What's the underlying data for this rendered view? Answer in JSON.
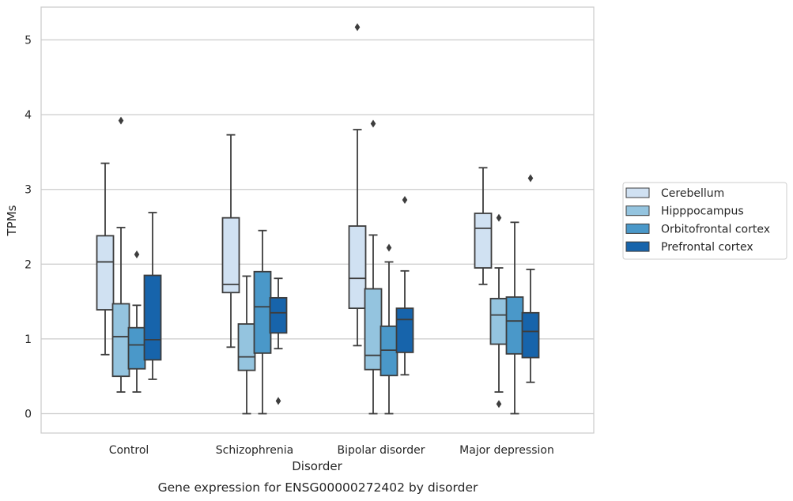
{
  "chart_data": {
    "type": "box",
    "caption": "Gene expression for ENSG00000272402 by disorder",
    "xlabel": "Disorder",
    "ylabel": "TPMs",
    "ylim": [
      -0.25,
      5.45
    ],
    "yticks": [
      0,
      1,
      2,
      3,
      4,
      5
    ],
    "grid": "horizontal",
    "legend_position": "center-right",
    "categories": [
      "Control",
      "Schizophrenia",
      "Bipolar disorder",
      "Major depression"
    ],
    "series": [
      {
        "name": "Cerebellum",
        "color": "#d0e1f2",
        "boxes": [
          {
            "whislo": 0.79,
            "q1": 1.39,
            "med": 2.03,
            "q3": 2.38,
            "whishi": 3.35,
            "fliers": []
          },
          {
            "whislo": 0.89,
            "q1": 1.62,
            "med": 1.73,
            "q3": 2.62,
            "whishi": 3.73,
            "fliers": []
          },
          {
            "whislo": 0.91,
            "q1": 1.41,
            "med": 1.81,
            "q3": 2.51,
            "whishi": 3.8,
            "fliers": [
              5.17
            ]
          },
          {
            "whislo": 1.73,
            "q1": 1.95,
            "med": 2.48,
            "q3": 2.68,
            "whishi": 3.29,
            "fliers": []
          }
        ]
      },
      {
        "name": "Hipppocampus",
        "color": "#94c4df",
        "boxes": [
          {
            "whislo": 0.29,
            "q1": 0.5,
            "med": 1.03,
            "q3": 1.47,
            "whishi": 2.49,
            "fliers": [
              3.92
            ]
          },
          {
            "whislo": 0.0,
            "q1": 0.58,
            "med": 0.76,
            "q3": 1.2,
            "whishi": 1.84,
            "fliers": []
          },
          {
            "whislo": 0.0,
            "q1": 0.59,
            "med": 0.78,
            "q3": 1.67,
            "whishi": 2.39,
            "fliers": [
              3.88
            ]
          },
          {
            "whislo": 0.29,
            "q1": 0.93,
            "med": 1.32,
            "q3": 1.54,
            "whishi": 1.95,
            "fliers": [
              0.13,
              2.62
            ]
          }
        ]
      },
      {
        "name": "Orbitofrontal cortex",
        "color": "#4a98c9",
        "boxes": [
          {
            "whislo": 0.29,
            "q1": 0.6,
            "med": 0.92,
            "q3": 1.15,
            "whishi": 1.45,
            "fliers": [
              2.13
            ]
          },
          {
            "whislo": 0.0,
            "q1": 0.81,
            "med": 1.43,
            "q3": 1.9,
            "whishi": 2.45,
            "fliers": []
          },
          {
            "whislo": 0.0,
            "q1": 0.51,
            "med": 0.85,
            "q3": 1.17,
            "whishi": 2.03,
            "fliers": [
              2.22
            ]
          },
          {
            "whislo": 0.0,
            "q1": 0.8,
            "med": 1.24,
            "q3": 1.56,
            "whishi": 2.56,
            "fliers": []
          }
        ]
      },
      {
        "name": "Prefrontal cortex",
        "color": "#1764ab",
        "boxes": [
          {
            "whislo": 0.46,
            "q1": 0.72,
            "med": 0.99,
            "q3": 1.85,
            "whishi": 2.69,
            "fliers": []
          },
          {
            "whislo": 0.87,
            "q1": 1.08,
            "med": 1.35,
            "q3": 1.55,
            "whishi": 1.81,
            "fliers": [
              0.17
            ]
          },
          {
            "whislo": 0.52,
            "q1": 0.82,
            "med": 1.26,
            "q3": 1.41,
            "whishi": 1.91,
            "fliers": [
              2.86
            ]
          },
          {
            "whislo": 0.42,
            "q1": 0.75,
            "med": 1.1,
            "q3": 1.35,
            "whishi": 1.93,
            "fliers": [
              3.15
            ]
          }
        ]
      }
    ]
  }
}
